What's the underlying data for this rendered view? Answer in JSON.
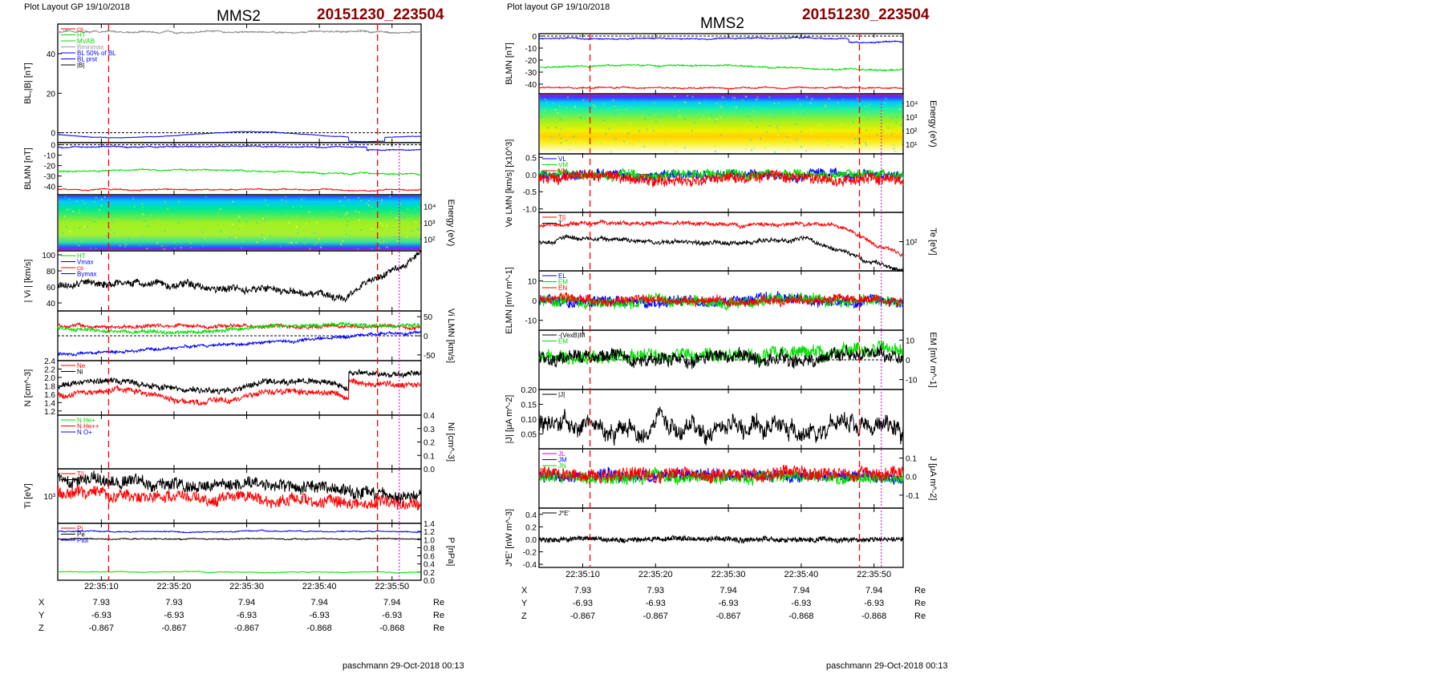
{
  "panels": [
    {
      "header": "Plot Layout GP 19/10/2018",
      "title": "MMS2",
      "date": "20151230_223504",
      "footer": "paschmann 29-Oct-2018 00:13",
      "time_ticks": [
        "22:35:10",
        "22:35:20",
        "22:35:30",
        "22:35:40",
        "22:35:50"
      ],
      "ephemeris": [
        {
          "label": "X",
          "values": [
            "7.93",
            "7.93",
            "7.94",
            "7.94",
            "7.94"
          ],
          "unit": "Re"
        },
        {
          "label": "Y",
          "values": [
            "-6.93",
            "-6.93",
            "-6.93",
            "-6.93",
            "-6.93"
          ],
          "unit": "Re"
        },
        {
          "label": "Z",
          "values": [
            "-0.867",
            "-0.867",
            "-0.867",
            "-0.868",
            "-0.868"
          ],
          "unit": "Re"
        }
      ]
    },
    {
      "header": "Plot layout GP 19/10/2018",
      "title": "MMS2",
      "date": "20151230_223504",
      "footer": "paschmann 29-Oct-2018 00:13",
      "time_ticks": [
        "22:35:10",
        "22:35:20",
        "22:35:30",
        "22:35:40",
        "22:35:50"
      ],
      "ephemeris": [
        {
          "label": "X",
          "values": [
            "7.93",
            "7.93",
            "7.94",
            "7.94",
            "7.94"
          ],
          "unit": "Re"
        },
        {
          "label": "Y",
          "values": [
            "-6.93",
            "-6.93",
            "-6.93",
            "-6.93",
            "-6.93"
          ],
          "unit": "Re"
        },
        {
          "label": "Z",
          "values": [
            "-0.867",
            "-0.867",
            "-0.867",
            "-0.868",
            "-0.868"
          ],
          "unit": "Re"
        }
      ]
    }
  ],
  "colors": {
    "red": "#ff0000",
    "green": "#00dd00",
    "blue": "#0000ff",
    "black": "#000000",
    "magenta": "#cc00cc",
    "date": "#8b0000"
  },
  "chart_data": [
    {
      "type": "line",
      "figure": "left",
      "x_range": [
        "22:35:04",
        "22:35:54"
      ],
      "markers": {
        "red_dashed": [
          "22:35:11",
          "22:35:48"
        ],
        "magenta_dotted": [
          "22:35:51"
        ]
      },
      "subplots": [
        {
          "id": "L1",
          "ylabel": "BL,|B| [nT]",
          "ylim": [
            -5,
            55
          ],
          "ticks": [
            "0",
            "20",
            "40"
          ],
          "legend": [
            "cs",
            "HT",
            "MVAB",
            "Bminmax",
            "BL 50% of BL",
            "BL prst",
            "|B|"
          ],
          "series": [
            {
              "name": "|B|",
              "approx": 51
            },
            {
              "name": "BL",
              "approx": -1
            }
          ]
        },
        {
          "id": "L2",
          "ylabel": "BLMN [nT]",
          "ylim": [
            -48,
            2
          ],
          "ticks": [
            "0",
            "-10",
            "-20",
            "-30",
            "-40"
          ],
          "series": [
            {
              "name": "BL",
              "approx": -2
            },
            {
              "name": "BM",
              "approx": -26
            },
            {
              "name": "BN",
              "approx": -43
            }
          ]
        },
        {
          "id": "L3",
          "type": "heatmap",
          "ylabel": "Energy (eV)",
          "ticks": [
            "10^4",
            "10^3",
            "10^2"
          ]
        },
        {
          "id": "L4",
          "ylabel": "| Vi | [km/s]",
          "ylim": [
            30,
            105
          ],
          "ticks": [
            "100",
            "80",
            "60",
            "40"
          ],
          "legend": [
            "HT",
            "Vmax",
            "cs",
            "Bymax"
          ],
          "series": [
            {
              "name": "|Vi|",
              "range": [
                40,
                100
              ]
            }
          ]
        },
        {
          "id": "L5",
          "ylabel": "Vi LMN [km/s]",
          "ylim": [
            -65,
            65
          ],
          "ticks": [
            "50",
            "0",
            "-50"
          ],
          "series": [
            {
              "name": "VL",
              "approx": 25
            },
            {
              "name": "VM",
              "approx": 20
            },
            {
              "name": "VN",
              "range": [
                -55,
                10
              ]
            }
          ]
        },
        {
          "id": "L6",
          "ylabel": "N [cm^-3]",
          "ylim": [
            1.1,
            2.4
          ],
          "ticks": [
            "2.4",
            "2.2",
            "2.0",
            "1.8",
            "1.6",
            "1.4",
            "1.2"
          ],
          "legend": [
            "Ne",
            "Ni"
          ],
          "series": [
            {
              "name": "Ne",
              "range": [
                1.2,
                2.0
              ]
            },
            {
              "name": "Ni",
              "range": [
                1.4,
                2.3
              ]
            }
          ]
        },
        {
          "id": "L7",
          "ylabel": "Ni [cm^-3]",
          "ylim": [
            0,
            0.4
          ],
          "ticks": [
            "0.4",
            "0.3",
            "0.2",
            "0.1",
            "0.0"
          ],
          "legend": [
            "N He+",
            "N He++",
            "N O+"
          ]
        },
        {
          "id": "L8",
          "ylabel": "Ti [eV]",
          "ticks": [
            "10^3"
          ],
          "legend": [
            "T||",
            "T⊥"
          ]
        },
        {
          "id": "L9",
          "ylabel": "P [nPa]",
          "ylim": [
            0,
            1.4
          ],
          "ticks": [
            "1.4",
            "1.2",
            "1.0",
            "0.8",
            "0.6",
            "0.4",
            "0.2",
            "0.0"
          ],
          "legend": [
            "Pi",
            "Pe",
            "Ptot"
          ],
          "series": [
            {
              "name": "Ptot",
              "approx": 1.2
            },
            {
              "name": "Pi",
              "approx": 1.0
            },
            {
              "name": "Pe",
              "approx": 0.2
            }
          ]
        }
      ]
    },
    {
      "type": "line",
      "figure": "right",
      "x_range": [
        "22:35:04",
        "22:35:54"
      ],
      "markers": {
        "red_dashed": [
          "22:35:11",
          "22:35:48"
        ],
        "magenta_dotted": [
          "22:35:51"
        ]
      },
      "subplots": [
        {
          "id": "R1",
          "ylabel": "BLMN [nT]",
          "ylim": [
            -48,
            2
          ],
          "ticks": [
            "0",
            "-10",
            "-20",
            "-30",
            "-40"
          ],
          "series": [
            {
              "name": "BL",
              "approx": -2
            },
            {
              "name": "BM",
              "approx": -26
            },
            {
              "name": "BN",
              "approx": -43
            }
          ]
        },
        {
          "id": "R2",
          "type": "heatmap",
          "ylabel": "Energy (eV)",
          "ticks": [
            "10^4",
            "10^3",
            "10^2",
            "10^1"
          ]
        },
        {
          "id": "R3",
          "ylabel": "Ve LMN [km/s] [x10^3]",
          "ylim": [
            -1.1,
            0.6
          ],
          "ticks": [
            "0.5",
            "0.0",
            "-0.5",
            "-1.0"
          ],
          "legend": [
            "VL",
            "VM",
            "VN"
          ]
        },
        {
          "id": "R4",
          "ylabel": "Te [eV]",
          "ticks": [
            "10^2"
          ],
          "legend": [
            "T||",
            "T"
          ]
        },
        {
          "id": "R5",
          "ylabel": "ELMN [mV m^-1]",
          "ylim": [
            -15,
            15
          ],
          "ticks": [
            "10",
            "0",
            "-10"
          ],
          "legend": [
            "EL",
            "EM",
            "EN"
          ]
        },
        {
          "id": "R6",
          "ylabel": "EM [mV m^-1]",
          "ylim": [
            -15,
            15
          ],
          "ticks": [
            "10",
            "0",
            "-10"
          ],
          "legend": [
            "-(VexB)M",
            "EM"
          ]
        },
        {
          "id": "R7",
          "ylabel": "|J| [μA m^-2]",
          "ylim": [
            0,
            0.2
          ],
          "ticks": [
            "0.20",
            "0.15",
            "0.10",
            "0.05"
          ],
          "legend": [
            "|J|"
          ]
        },
        {
          "id": "R8",
          "ylabel": "J [μA m^-2]",
          "ylim": [
            -0.17,
            0.15
          ],
          "ticks": [
            "0.1",
            "0.0",
            "-0.1"
          ],
          "legend": [
            "JL",
            "JM",
            "JN"
          ]
        },
        {
          "id": "R9",
          "ylabel": "J*E' [nW m^-3]",
          "ylim": [
            -0.45,
            0.5
          ],
          "ticks": [
            "0.4",
            "0.2",
            "0.0",
            "-0.2",
            "-0.4"
          ],
          "legend": [
            "J*E'"
          ]
        }
      ]
    }
  ]
}
